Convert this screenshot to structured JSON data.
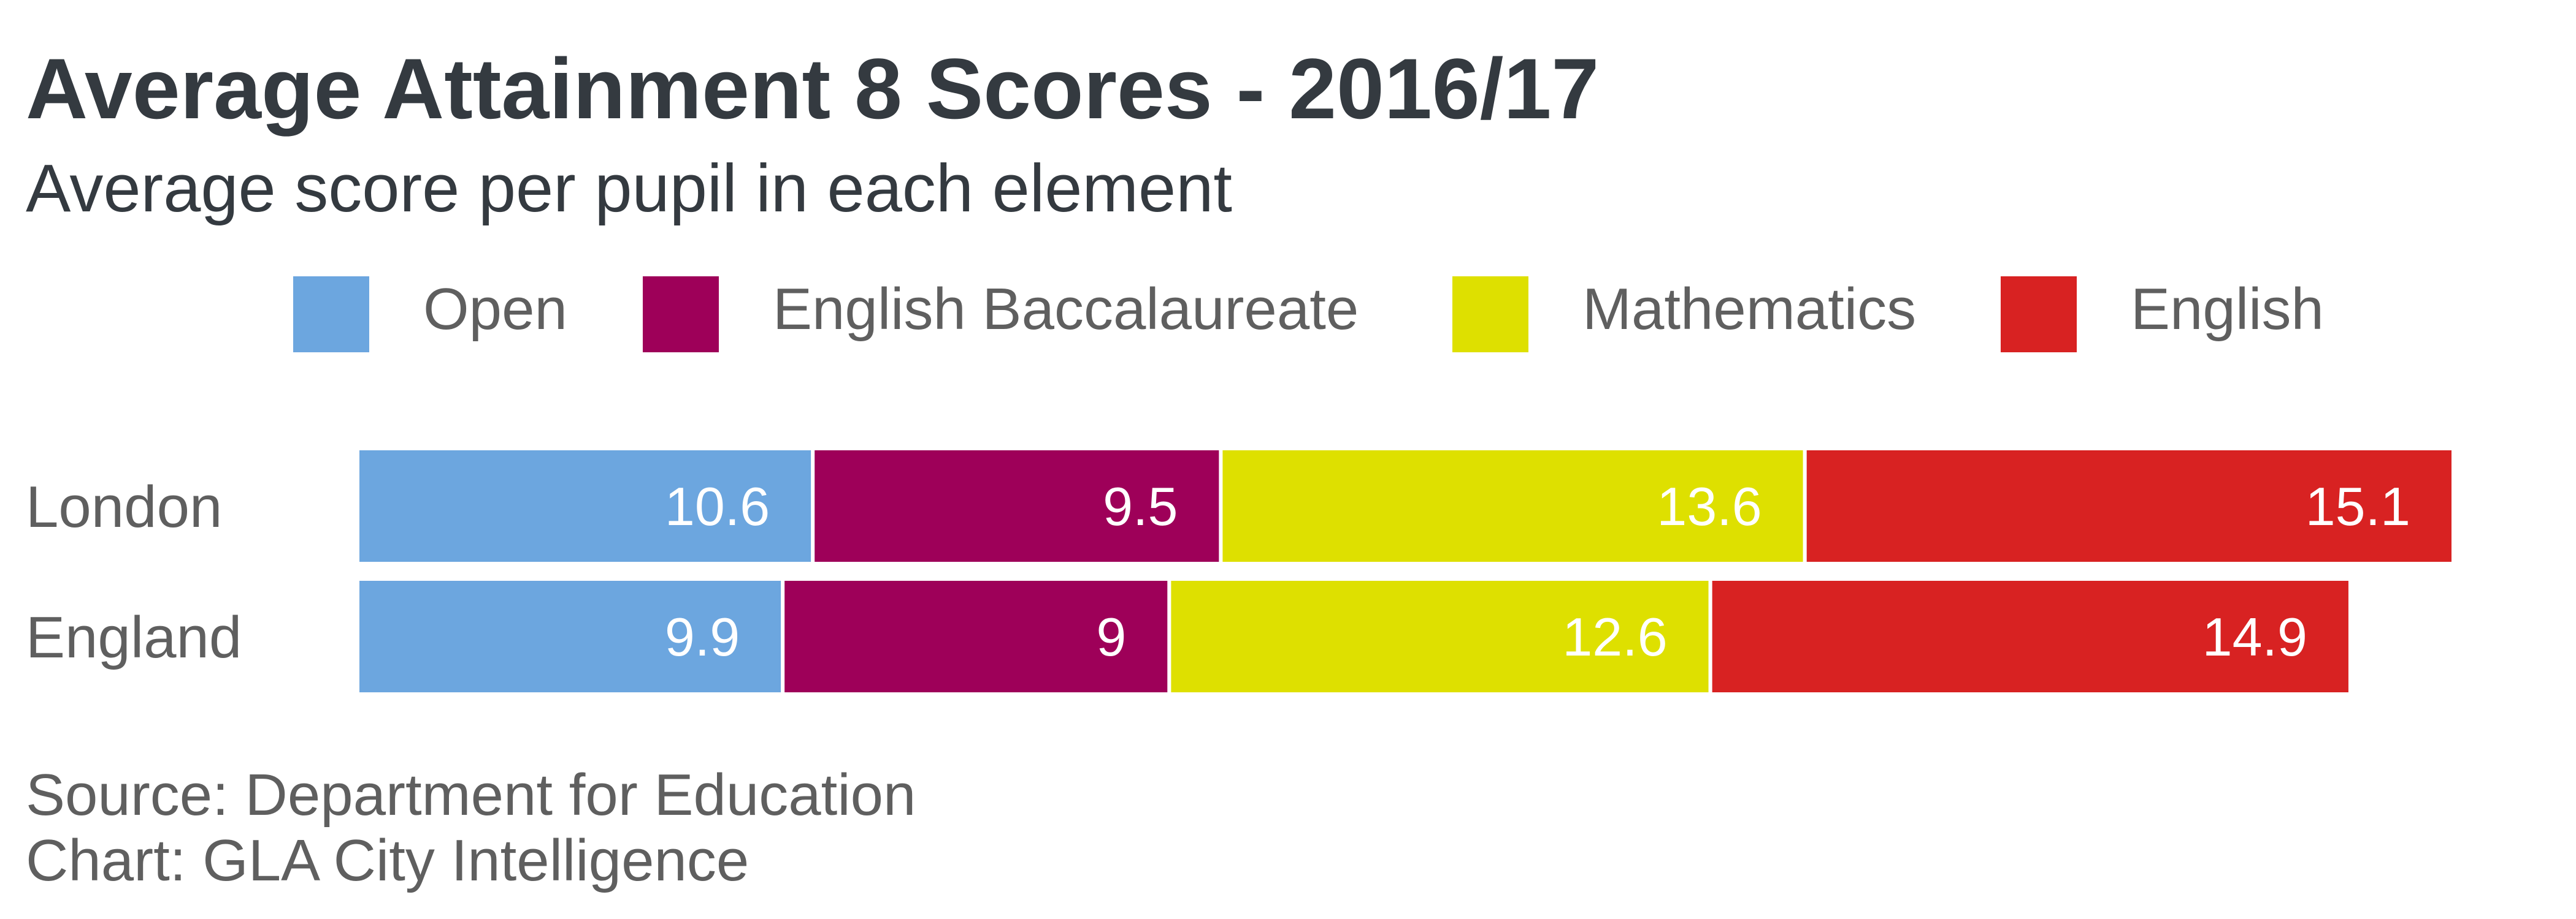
{
  "chart_data": {
    "type": "bar",
    "orientation": "horizontal",
    "stacked": true,
    "title": "Average Attainment 8 Scores - 2016/17",
    "subtitle": "Average score per pupil in each element",
    "categories": [
      "London",
      "England"
    ],
    "series": [
      {
        "name": "Open",
        "color": "#6ca6df",
        "values": [
          10.6,
          9.9
        ]
      },
      {
        "name": "English Baccalaureate",
        "color": "#9e0059",
        "values": [
          9.5,
          9
        ]
      },
      {
        "name": "Mathematics",
        "color": "#dee000",
        "values": [
          13.6,
          12.6
        ]
      },
      {
        "name": "English",
        "color": "#d82222",
        "values": [
          15.1,
          14.9
        ]
      }
    ],
    "data_labels": true,
    "legend_position": "top",
    "axes_visible": false,
    "grid": false,
    "xlim": [
      0,
      48.8
    ]
  },
  "footer": {
    "source": "Source: Department for Education",
    "credit": "Chart: GLA City Intelligence"
  }
}
